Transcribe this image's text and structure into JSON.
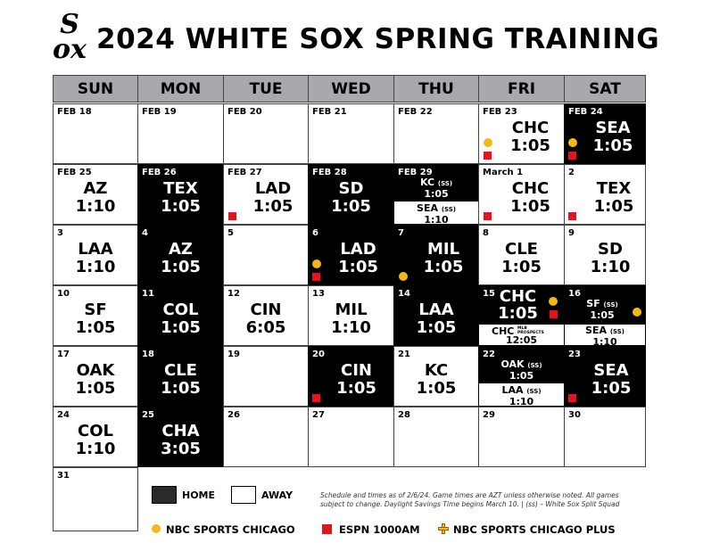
{
  "title": "2024 WHITE SOX SPRING TRAINING",
  "logo": {
    "line1": "S",
    "line2": "ox"
  },
  "days": [
    "SUN",
    "MON",
    "TUE",
    "WED",
    "THU",
    "FRI",
    "SAT"
  ],
  "cells": {
    "feb18": {
      "date": "FEB 18"
    },
    "feb19": {
      "date": "FEB 19"
    },
    "feb20": {
      "date": "FEB 20"
    },
    "feb21": {
      "date": "FEB 21"
    },
    "feb22": {
      "date": "FEB 22"
    },
    "feb23": {
      "date": "FEB 23",
      "opp": "CHC",
      "time": "1:05"
    },
    "feb24": {
      "date": "FEB 24",
      "opp": "SEA",
      "time": "1:05"
    },
    "feb25": {
      "date": "FEB 25",
      "opp": "AZ",
      "time": "1:10"
    },
    "feb26": {
      "date": "FEB 26",
      "opp": "TEX",
      "time": "1:05"
    },
    "feb27": {
      "date": "FEB 27",
      "opp": "LAD",
      "time": "1:05"
    },
    "feb28": {
      "date": "FEB 28",
      "opp": "SD",
      "time": "1:05"
    },
    "feb29": {
      "date": "FEB 29",
      "opp": "KC",
      "time": "1:05",
      "opp2": "SEA",
      "time2": "1:10"
    },
    "mar1": {
      "date": "March 1",
      "opp": "CHC",
      "time": "1:05"
    },
    "mar2": {
      "date": "2",
      "opp": "TEX",
      "time": "1:05"
    },
    "mar3": {
      "date": "3",
      "opp": "LAA",
      "time": "1:10"
    },
    "mar4": {
      "date": "4",
      "opp": "AZ",
      "time": "1:05"
    },
    "mar5": {
      "date": "5"
    },
    "mar6": {
      "date": "6",
      "opp": "LAD",
      "time": "1:05"
    },
    "mar7": {
      "date": "7",
      "opp": "MIL",
      "time": "1:05"
    },
    "mar8": {
      "date": "8",
      "opp": "CLE",
      "time": "1:05"
    },
    "mar9": {
      "date": "9",
      "opp": "SD",
      "time": "1:10"
    },
    "mar10": {
      "date": "10",
      "opp": "SF",
      "time": "1:05"
    },
    "mar11": {
      "date": "11",
      "opp": "COL",
      "time": "1:05"
    },
    "mar12": {
      "date": "12",
      "opp": "CIN",
      "time": "6:05"
    },
    "mar13": {
      "date": "13",
      "opp": "MIL",
      "time": "1:10"
    },
    "mar14": {
      "date": "14",
      "opp": "LAA",
      "time": "1:05"
    },
    "mar15": {
      "date": "15",
      "opp": "CHC",
      "time": "1:05",
      "opp2": "CHC",
      "tag2": "MLB PROSPECTS",
      "time2": "12:05"
    },
    "mar16": {
      "date": "16",
      "opp": "SF",
      "time": "1:05",
      "opp2": "SEA",
      "time2": "1:10"
    },
    "mar17": {
      "date": "17",
      "opp": "OAK",
      "time": "1:05"
    },
    "mar18": {
      "date": "18",
      "opp": "CLE",
      "time": "1:05"
    },
    "mar19": {
      "date": "19"
    },
    "mar20": {
      "date": "20",
      "opp": "CIN",
      "time": "1:05"
    },
    "mar21": {
      "date": "21",
      "opp": "KC",
      "time": "1:05"
    },
    "mar22": {
      "date": "22",
      "opp": "OAK",
      "time": "1:05",
      "opp2": "LAA",
      "time2": "1:10"
    },
    "mar23": {
      "date": "23",
      "opp": "SEA",
      "time": "1:05"
    },
    "mar24": {
      "date": "24",
      "opp": "COL",
      "time": "1:10"
    },
    "mar25": {
      "date": "25",
      "opp": "CHA",
      "time": "3:05"
    },
    "mar26": {
      "date": "26"
    },
    "mar27": {
      "date": "27"
    },
    "mar28": {
      "date": "28"
    },
    "mar29": {
      "date": "29"
    },
    "mar30": {
      "date": "30"
    },
    "mar31": {
      "date": "31"
    }
  },
  "ss_tag": "(SS)",
  "legend": {
    "home": "HOME",
    "away": "AWAY"
  },
  "note": "Schedule and times as of 2/6/24. Game times are AZT unless otherwise noted. All games subject to change. Daylight Savings Time begins March 10. | (ss) – White Sox Split Squad",
  "broadcasters": {
    "nbc": "NBC SPORTS CHICAGO",
    "espn": "ESPN 1000AM",
    "nbcplus": "NBC SPORTS CHICAGO PLUS"
  },
  "colors": {
    "home_bg": "#000000",
    "away_bg": "#ffffff",
    "header_bg": "#a7a9ac",
    "nbc_dot": "#f2b81c",
    "espn_square": "#d71920"
  }
}
